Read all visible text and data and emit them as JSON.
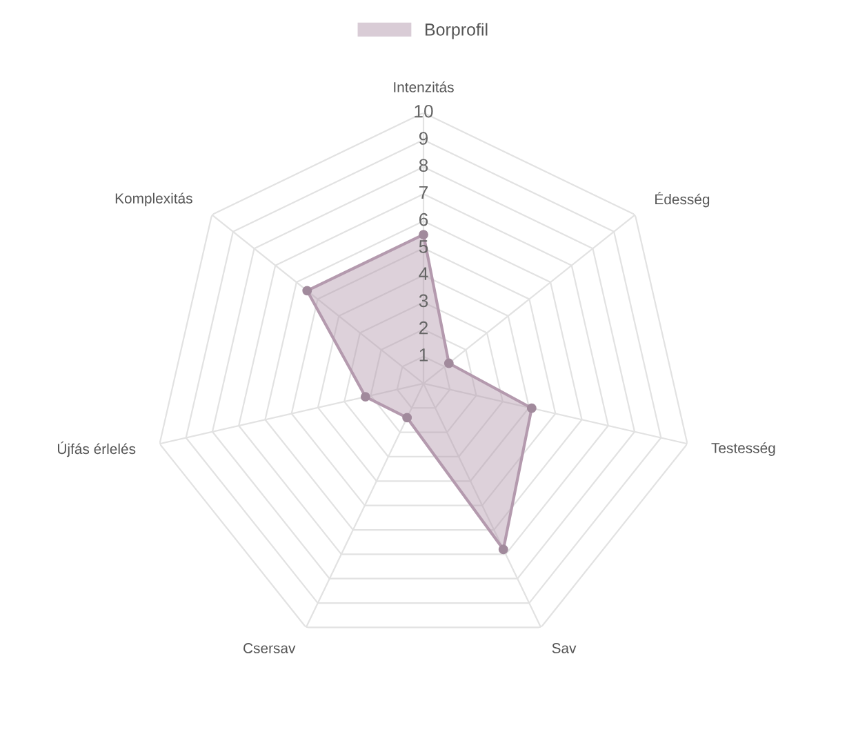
{
  "chart_data": {
    "type": "radar",
    "categories": [
      "Intenzitás",
      "Édesség",
      "Testesség",
      "Sav",
      "Csersav",
      "Újfás érlelés",
      "Komplexitás"
    ],
    "series": [
      {
        "name": "Borprofil",
        "color": "#b49aae",
        "values": [
          5.5,
          1.2,
          4.1,
          6.8,
          1.4,
          2.2,
          5.5
        ]
      }
    ],
    "ylim": [
      0,
      10
    ],
    "yticks": [
      1,
      2,
      3,
      4,
      5,
      6,
      7,
      8,
      9,
      10
    ],
    "grid": true,
    "legend": "top",
    "marker": "circle"
  }
}
